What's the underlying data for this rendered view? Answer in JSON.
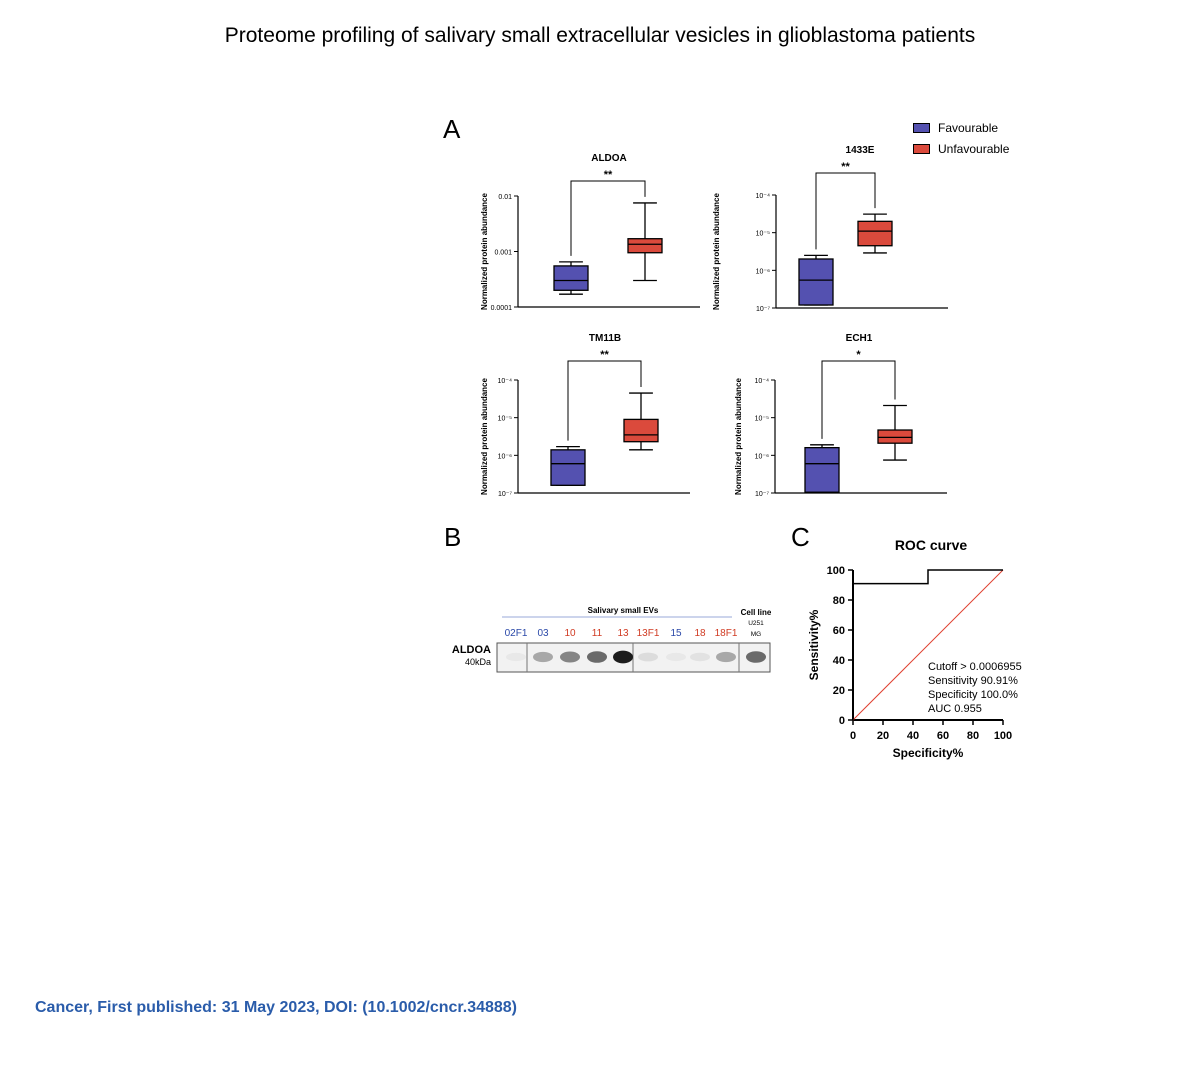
{
  "page": {
    "title": "Proteome profiling of salivary small extracellular vesicles in glioblastoma patients",
    "citation": "Cancer, First published: 31 May 2023, DOI: (10.1002/cncr.34888)"
  },
  "panels": {
    "a": "A",
    "b": "B",
    "c": "C"
  },
  "legend": {
    "items": [
      {
        "label": "Favourable",
        "color": "#5451b0"
      },
      {
        "label": "Unfavourable",
        "color": "#db4a3c"
      }
    ]
  },
  "chart_data": [
    {
      "type": "box",
      "title": "ALDOA",
      "ylabel": "Normalized protein abundance",
      "yscale": "log",
      "yticks": [
        "0.0001",
        "0.001",
        "0.01"
      ],
      "ylim": [
        0.0001,
        0.01
      ],
      "significance": "**",
      "groups": [
        {
          "name": "Favourable",
          "min": 0.00017,
          "q1": 0.0002,
          "median": 0.0003,
          "q3": 0.00055,
          "max": 0.00065
        },
        {
          "name": "Unfavourable",
          "min": 0.0003,
          "q1": 0.00095,
          "median": 0.00135,
          "q3": 0.0017,
          "max": 0.0075
        }
      ]
    },
    {
      "type": "box",
      "title": "1433E",
      "ylabel": "Normalized protein abundance",
      "yscale": "log",
      "yticks": [
        "10⁻⁷",
        "10⁻⁶",
        "10⁻⁵",
        "10⁻⁴"
      ],
      "ylim": [
        1e-07,
        0.0001
      ],
      "significance": "**",
      "groups": [
        {
          "name": "Favourable",
          "min": 1.2e-07,
          "q1": 1.2e-07,
          "median": 5.5e-07,
          "q3": 2e-06,
          "max": 2.5e-06
        },
        {
          "name": "Unfavourable",
          "min": 2.9e-06,
          "q1": 4.5e-06,
          "median": 1.1e-05,
          "q3": 2e-05,
          "max": 3.1e-05
        }
      ]
    },
    {
      "type": "box",
      "title": "TM11B",
      "ylabel": "Normalized protein abundance",
      "yscale": "log",
      "yticks": [
        "10⁻⁷",
        "10⁻⁶",
        "10⁻⁵",
        "10⁻⁴"
      ],
      "ylim": [
        1e-07,
        0.0001
      ],
      "significance": "**",
      "groups": [
        {
          "name": "Favourable",
          "min": 1.6e-07,
          "q1": 1.6e-07,
          "median": 6e-07,
          "q3": 1.4e-06,
          "max": 1.7e-06
        },
        {
          "name": "Unfavourable",
          "min": 1.4e-06,
          "q1": 2.3e-06,
          "median": 3.5e-06,
          "q3": 9e-06,
          "max": 4.5e-05
        }
      ]
    },
    {
      "type": "box",
      "title": "ECH1",
      "ylabel": "Normalized protein abundance",
      "yscale": "log",
      "yticks": [
        "10⁻⁷",
        "10⁻⁶",
        "10⁻⁵",
        "10⁻⁴"
      ],
      "ylim": [
        1e-07,
        0.0001
      ],
      "significance": "*",
      "groups": [
        {
          "name": "Favourable",
          "min": 1.05e-07,
          "q1": 1.05e-07,
          "median": 6e-07,
          "q3": 1.6e-06,
          "max": 1.9e-06
        },
        {
          "name": "Unfavourable",
          "min": 7.5e-07,
          "q1": 2.1e-06,
          "median": 3e-06,
          "q3": 4.7e-06,
          "max": 2.1e-05
        }
      ]
    },
    {
      "type": "line",
      "title": "ROC curve",
      "xlabel": "Specificity%",
      "ylabel": "Sensitivity%",
      "xlim": [
        0,
        100
      ],
      "ylim": [
        0,
        100
      ],
      "xticks": [
        "0",
        "20",
        "40",
        "60",
        "80",
        "100"
      ],
      "yticks": [
        "0",
        "20",
        "40",
        "60",
        "80",
        "100"
      ],
      "series": [
        {
          "x": [
            0,
            0,
            50,
            50,
            100
          ],
          "y": [
            0,
            90.91,
            90.91,
            100,
            100
          ],
          "color": "#000000"
        },
        {
          "x": [
            0,
            100
          ],
          "y": [
            0,
            100
          ],
          "color": "#e04030"
        }
      ],
      "annotations": [
        "Cutoff > 0.0006955",
        "Sensitivity 90.91%",
        "Specificity 100.0%",
        "AUC 0.955"
      ]
    }
  ],
  "blot": {
    "group_header": "Salivary small EVs",
    "cell_line_header": "Cell line",
    "protein": "ALDOA",
    "size": "40kDa",
    "lanes": [
      {
        "label": "02F1",
        "color": "#2a48a8"
      },
      {
        "label": "03",
        "color": "#2a48a8"
      },
      {
        "label": "10",
        "color": "#d03a22"
      },
      {
        "label": "11",
        "color": "#d03a22"
      },
      {
        "label": "13",
        "color": "#d03a22"
      },
      {
        "label": "13F1",
        "color": "#d03a22"
      },
      {
        "label": "15",
        "color": "#2a48a8"
      },
      {
        "label": "18",
        "color": "#d03a22"
      },
      {
        "label": "18F1",
        "color": "#d03a22"
      },
      {
        "label": "U251 MG",
        "color": "#000000"
      }
    ],
    "band_intensity": [
      0.05,
      0.45,
      0.6,
      0.7,
      0.95,
      0.15,
      0.05,
      0.1,
      0.45,
      0.7
    ]
  }
}
